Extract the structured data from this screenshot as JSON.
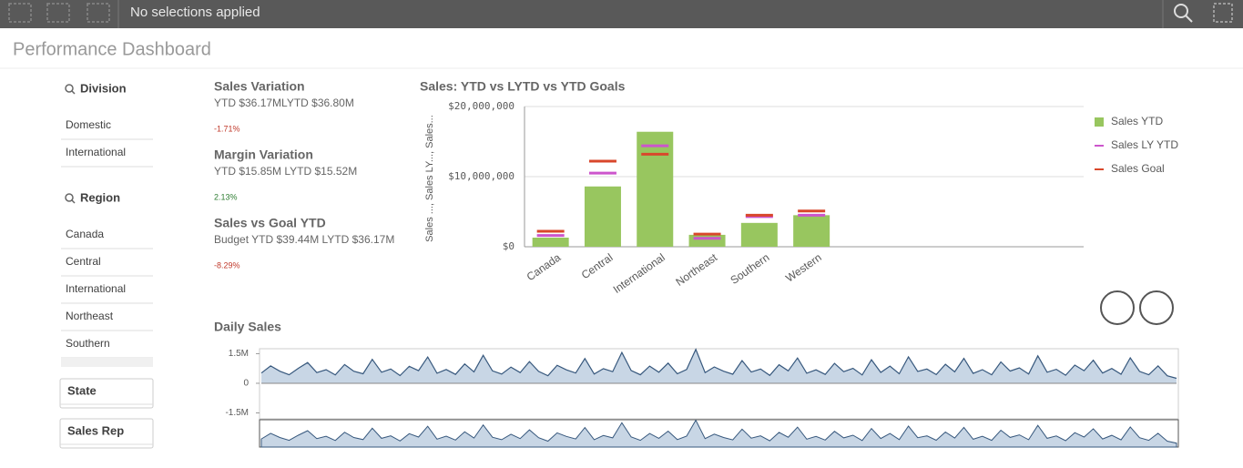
{
  "header": {
    "selections": "No selections applied"
  },
  "title": "Performance Dashboard",
  "filters": {
    "division": {
      "label": "Division",
      "items": [
        "Domestic",
        "International"
      ]
    },
    "region": {
      "label": "Region",
      "items": [
        "Canada",
        "Central",
        "International",
        "Northeast",
        "Southern"
      ]
    },
    "state": {
      "label": "State"
    },
    "sales_rep": {
      "label": "Sales Rep"
    }
  },
  "kpis": [
    {
      "title": "Sales Variation",
      "detail": "YTD $36.17MLYTD $36.80M",
      "change": "-1.71%",
      "color": "#c0392b"
    },
    {
      "title": "Margin Variation",
      "detail": "YTD $15.85M LYTD $15.52M",
      "change": "2.13%",
      "color": "#2e7d32"
    },
    {
      "title": "Sales vs Goal YTD",
      "detail": "Budget YTD $39.44M LYTD $36.17M",
      "change": "-8.29%",
      "color": "#c0392b"
    }
  ],
  "chart_data": [
    {
      "type": "bar",
      "title": "Sales: YTD vs LYTD vs YTD Goals",
      "y_label": "Sales ..., Sales LY..., Sales...",
      "categories": [
        "Canada",
        "Central",
        "International",
        "Northeast",
        "Southern",
        "Western"
      ],
      "series": [
        {
          "name": "Sales YTD",
          "color": "#98c65f",
          "mark": "bar",
          "values": [
            1300000,
            8600000,
            16400000,
            1700000,
            3400000,
            4500000
          ]
        },
        {
          "name": "Sales LY YTD",
          "color": "#cc55cc",
          "mark": "dash",
          "values": [
            1600000,
            10500000,
            14400000,
            1200000,
            4300000,
            4500000
          ]
        },
        {
          "name": "Sales Goal",
          "color": "#d9472b",
          "mark": "dash",
          "values": [
            2200000,
            12200000,
            13200000,
            1800000,
            4500000,
            5100000
          ]
        }
      ],
      "ylim": [
        0,
        20000000
      ],
      "yticks": [
        {
          "value": 0,
          "label": "$0"
        },
        {
          "value": 10000000,
          "label": "$10,000,000"
        },
        {
          "value": 20000000,
          "label": "$20,000,000"
        }
      ],
      "grid": true,
      "legend": "right"
    },
    {
      "type": "area",
      "title": "Daily Sales",
      "color": "#37587d",
      "fill": "#c8d6e5",
      "values": [
        520000,
        880000,
        610000,
        430000,
        760000,
        1050000,
        540000,
        690000,
        420000,
        950000,
        610000,
        480000,
        1210000,
        560000,
        720000,
        390000,
        860000,
        640000,
        1330000,
        510000,
        700000,
        450000,
        980000,
        580000,
        1420000,
        630000,
        470000,
        820000,
        540000,
        1100000,
        600000,
        380000,
        910000,
        680000,
        520000,
        1250000,
        470000,
        740000,
        590000,
        1560000,
        650000,
        430000,
        870000,
        560000,
        1020000,
        480000,
        700000,
        1720000,
        540000,
        830000,
        610000,
        460000,
        1150000,
        570000,
        720000,
        400000,
        940000,
        630000,
        1280000,
        510000,
        680000,
        450000,
        1010000,
        590000,
        760000,
        420000,
        1190000,
        550000,
        870000,
        480000,
        1340000,
        600000,
        720000,
        440000,
        960000,
        580000,
        1260000,
        500000,
        690000,
        430000,
        1080000,
        620000,
        780000,
        470000,
        1390000,
        560000,
        710000,
        410000,
        920000,
        640000,
        1170000,
        520000,
        750000,
        460000,
        1290000,
        600000,
        430000,
        880000,
        380000,
        250000
      ],
      "ylim": [
        -1800000,
        1750000
      ],
      "yticks": [
        {
          "value": 1500000,
          "label": "1.5M"
        },
        {
          "value": 0,
          "label": "0"
        },
        {
          "value": -1500000,
          "label": "-1.5M"
        }
      ],
      "navigator": true
    }
  ]
}
